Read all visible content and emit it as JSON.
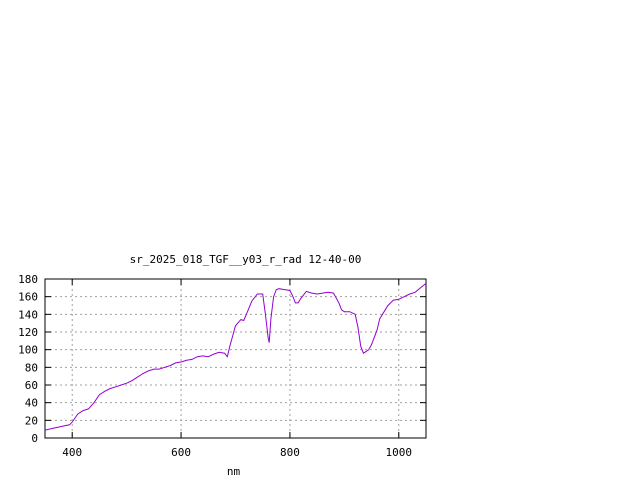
{
  "chart_data": {
    "type": "line",
    "title": "sr_2025_018_TGF__y03_r_rad 12-40-00",
    "xlabel": "nm",
    "ylabel": "",
    "xlim": [
      350,
      1050
    ],
    "ylim": [
      0,
      180
    ],
    "xticks": [
      400,
      600,
      800,
      1000
    ],
    "yticks": [
      0,
      20,
      40,
      60,
      80,
      100,
      120,
      140,
      160,
      180
    ],
    "grid": true,
    "line_color": "#9400d3",
    "series": [
      {
        "x": [
          350,
          365,
          380,
          395,
          400,
          410,
          420,
          430,
          440,
          450,
          460,
          470,
          480,
          490,
          500,
          510,
          520,
          530,
          540,
          550,
          560,
          570,
          580,
          590,
          600,
          610,
          620,
          630,
          640,
          650,
          660,
          670,
          680,
          685,
          690,
          700,
          710,
          715,
          720,
          730,
          740,
          750,
          755,
          760,
          762,
          765,
          770,
          775,
          780,
          790,
          800,
          805,
          810,
          815,
          820,
          830,
          840,
          850,
          860,
          870,
          880,
          890,
          895,
          900,
          910,
          920,
          925,
          930,
          935,
          940,
          945,
          950,
          960,
          965,
          970,
          980,
          990,
          1000,
          1010,
          1020,
          1030,
          1040,
          1050
        ],
        "y": [
          9,
          11,
          13,
          15,
          18,
          27,
          31,
          33,
          40,
          49,
          53,
          56,
          58,
          60,
          62,
          65,
          69,
          73,
          76,
          78,
          78,
          80,
          82,
          85,
          86,
          88,
          89,
          92,
          93,
          92,
          95,
          97,
          96,
          92,
          105,
          127,
          134,
          133,
          140,
          155,
          163,
          163,
          140,
          113,
          108,
          135,
          160,
          168,
          169,
          168,
          167,
          161,
          153,
          153,
          158,
          166,
          164,
          163,
          164,
          165,
          164,
          153,
          145,
          143,
          143,
          140,
          125,
          104,
          96,
          98,
          100,
          106,
          122,
          135,
          140,
          150,
          156,
          157,
          160,
          163,
          165,
          170,
          175
        ]
      }
    ]
  }
}
